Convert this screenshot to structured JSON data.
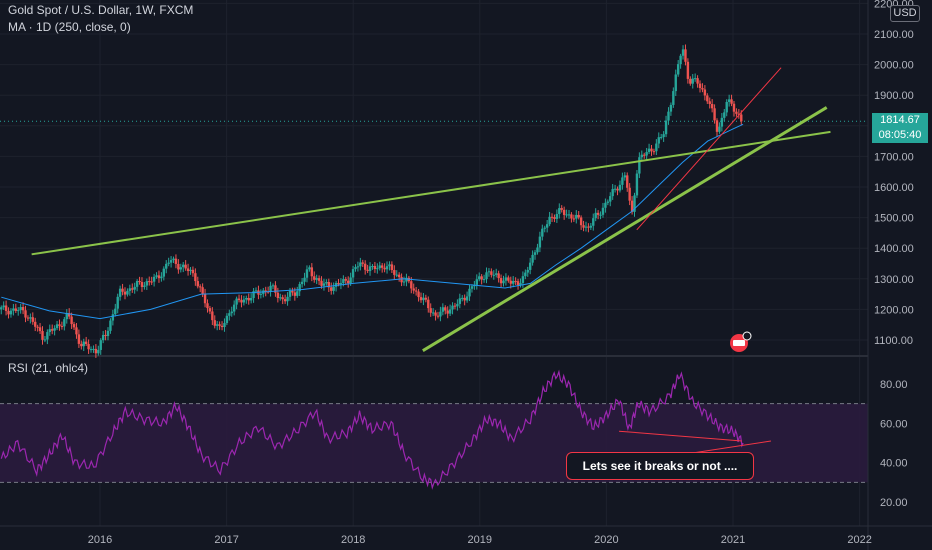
{
  "header": {
    "symbol_title": "Gold Spot / U.S. Dollar, 1W, FXCM",
    "ma_label": "MA · 1D (250, close, 0)",
    "rsi_label": "RSI (21, ohlc4)",
    "currency_badge": "USD"
  },
  "price_tag": {
    "price": "1814.67",
    "countdown": "08:05:40"
  },
  "annotation": {
    "text": "Lets see it breaks or not ...."
  },
  "colors": {
    "background": "#131722",
    "up_candle": "#26a69a",
    "down_candle": "#ef5350",
    "ma_line": "#2196f3",
    "trendline": "#8bc34a",
    "rsi_line": "#9c27b0",
    "rsi_band": "#2a1b3d",
    "red_line": "#f23645"
  },
  "chart_data": [
    {
      "type": "candlestick",
      "title": "Gold Spot / U.S. Dollar, 1W, FXCM",
      "ylim": [
        1040,
        2200
      ],
      "y_ticks": [
        "1100.00",
        "1200.00",
        "1300.00",
        "1400.00",
        "1500.00",
        "1600.00",
        "1700.00",
        "1800.00",
        "1900.00",
        "2000.00",
        "2100.00",
        "2200.00"
      ],
      "x_ticks": [
        "2016",
        "2017",
        "2018",
        "2019",
        "2020",
        "2021",
        "2022"
      ],
      "x_tick_values": [
        2016,
        2017,
        2018,
        2019,
        2020,
        2021,
        2022
      ],
      "xlim": [
        2015.22,
        2022.2
      ],
      "series_close": [
        {
          "x": 2015.22,
          "y": 1200
        },
        {
          "x": 2015.4,
          "y": 1195
        },
        {
          "x": 2015.55,
          "y": 1110
        },
        {
          "x": 2015.65,
          "y": 1140
        },
        {
          "x": 2015.75,
          "y": 1180
        },
        {
          "x": 2015.85,
          "y": 1085
        },
        {
          "x": 2015.97,
          "y": 1065
        },
        {
          "x": 2016.05,
          "y": 1120
        },
        {
          "x": 2016.15,
          "y": 1250
        },
        {
          "x": 2016.3,
          "y": 1280
        },
        {
          "x": 2016.45,
          "y": 1300
        },
        {
          "x": 2016.55,
          "y": 1360
        },
        {
          "x": 2016.65,
          "y": 1340
        },
        {
          "x": 2016.75,
          "y": 1310
        },
        {
          "x": 2016.85,
          "y": 1200
        },
        {
          "x": 2016.95,
          "y": 1130
        },
        {
          "x": 2017.05,
          "y": 1215
        },
        {
          "x": 2017.2,
          "y": 1245
        },
        {
          "x": 2017.35,
          "y": 1270
        },
        {
          "x": 2017.45,
          "y": 1230
        },
        {
          "x": 2017.55,
          "y": 1260
        },
        {
          "x": 2017.65,
          "y": 1330
        },
        {
          "x": 2017.75,
          "y": 1280
        },
        {
          "x": 2017.85,
          "y": 1275
        },
        {
          "x": 2017.95,
          "y": 1295
        },
        {
          "x": 2018.05,
          "y": 1350
        },
        {
          "x": 2018.15,
          "y": 1330
        },
        {
          "x": 2018.25,
          "y": 1345
        },
        {
          "x": 2018.35,
          "y": 1310
        },
        {
          "x": 2018.45,
          "y": 1280
        },
        {
          "x": 2018.55,
          "y": 1230
        },
        {
          "x": 2018.65,
          "y": 1180
        },
        {
          "x": 2018.75,
          "y": 1200
        },
        {
          "x": 2018.85,
          "y": 1225
        },
        {
          "x": 2018.95,
          "y": 1280
        },
        {
          "x": 2019.05,
          "y": 1320
        },
        {
          "x": 2019.15,
          "y": 1305
        },
        {
          "x": 2019.25,
          "y": 1285
        },
        {
          "x": 2019.35,
          "y": 1300
        },
        {
          "x": 2019.45,
          "y": 1410
        },
        {
          "x": 2019.55,
          "y": 1500
        },
        {
          "x": 2019.65,
          "y": 1520
        },
        {
          "x": 2019.75,
          "y": 1500
        },
        {
          "x": 2019.85,
          "y": 1465
        },
        {
          "x": 2019.95,
          "y": 1520
        },
        {
          "x": 2020.05,
          "y": 1580
        },
        {
          "x": 2020.15,
          "y": 1640
        },
        {
          "x": 2020.2,
          "y": 1500
        },
        {
          "x": 2020.25,
          "y": 1690
        },
        {
          "x": 2020.35,
          "y": 1720
        },
        {
          "x": 2020.45,
          "y": 1770
        },
        {
          "x": 2020.55,
          "y": 1960
        },
        {
          "x": 2020.6,
          "y": 2060
        },
        {
          "x": 2020.65,
          "y": 1950
        },
        {
          "x": 2020.72,
          "y": 1940
        },
        {
          "x": 2020.8,
          "y": 1890
        },
        {
          "x": 2020.88,
          "y": 1780
        },
        {
          "x": 2020.95,
          "y": 1880
        },
        {
          "x": 2021.02,
          "y": 1850
        },
        {
          "x": 2021.08,
          "y": 1814.67
        }
      ],
      "ma_250": [
        {
          "x": 2015.22,
          "y": 1240
        },
        {
          "x": 2015.6,
          "y": 1195
        },
        {
          "x": 2016.0,
          "y": 1170
        },
        {
          "x": 2016.4,
          "y": 1200
        },
        {
          "x": 2016.8,
          "y": 1250
        },
        {
          "x": 2017.2,
          "y": 1255
        },
        {
          "x": 2017.6,
          "y": 1265
        },
        {
          "x": 2018.0,
          "y": 1285
        },
        {
          "x": 2018.4,
          "y": 1300
        },
        {
          "x": 2018.8,
          "y": 1285
        },
        {
          "x": 2019.2,
          "y": 1270
        },
        {
          "x": 2019.4,
          "y": 1285
        },
        {
          "x": 2019.6,
          "y": 1345
        },
        {
          "x": 2019.8,
          "y": 1400
        },
        {
          "x": 2020.0,
          "y": 1460
        },
        {
          "x": 2020.2,
          "y": 1520
        },
        {
          "x": 2020.4,
          "y": 1600
        },
        {
          "x": 2020.6,
          "y": 1680
        },
        {
          "x": 2020.8,
          "y": 1750
        },
        {
          "x": 2021.0,
          "y": 1790
        },
        {
          "x": 2021.08,
          "y": 1805
        }
      ],
      "trendlines": [
        {
          "x1": 2015.46,
          "y1": 1380,
          "x2": 2021.77,
          "y2": 1780
        },
        {
          "x1": 2018.55,
          "y1": 1065,
          "x2": 2021.74,
          "y2": 1860
        },
        {
          "x1": 2020.24,
          "y1": 1460,
          "x2": 2021.38,
          "y2": 1990
        }
      ],
      "current_price": 1814.67
    },
    {
      "type": "line",
      "title": "RSI (21, ohlc4)",
      "ylim": [
        10,
        92
      ],
      "y_ticks": [
        "20.00",
        "40.00",
        "60.00",
        "80.00"
      ],
      "band": [
        30,
        70
      ],
      "series": [
        {
          "x": 2015.22,
          "y": 42
        },
        {
          "x": 2015.35,
          "y": 50
        },
        {
          "x": 2015.5,
          "y": 36
        },
        {
          "x": 2015.6,
          "y": 44
        },
        {
          "x": 2015.7,
          "y": 54
        },
        {
          "x": 2015.8,
          "y": 40
        },
        {
          "x": 2015.95,
          "y": 38
        },
        {
          "x": 2016.1,
          "y": 55
        },
        {
          "x": 2016.2,
          "y": 66
        },
        {
          "x": 2016.35,
          "y": 62
        },
        {
          "x": 2016.5,
          "y": 60
        },
        {
          "x": 2016.6,
          "y": 69
        },
        {
          "x": 2016.7,
          "y": 58
        },
        {
          "x": 2016.8,
          "y": 44
        },
        {
          "x": 2016.95,
          "y": 36
        },
        {
          "x": 2017.1,
          "y": 50
        },
        {
          "x": 2017.25,
          "y": 58
        },
        {
          "x": 2017.4,
          "y": 48
        },
        {
          "x": 2017.55,
          "y": 56
        },
        {
          "x": 2017.7,
          "y": 66
        },
        {
          "x": 2017.8,
          "y": 52
        },
        {
          "x": 2017.95,
          "y": 55
        },
        {
          "x": 2018.05,
          "y": 64
        },
        {
          "x": 2018.15,
          "y": 57
        },
        {
          "x": 2018.3,
          "y": 60
        },
        {
          "x": 2018.4,
          "y": 45
        },
        {
          "x": 2018.55,
          "y": 32
        },
        {
          "x": 2018.65,
          "y": 29
        },
        {
          "x": 2018.8,
          "y": 40
        },
        {
          "x": 2018.95,
          "y": 52
        },
        {
          "x": 2019.05,
          "y": 62
        },
        {
          "x": 2019.15,
          "y": 60
        },
        {
          "x": 2019.25,
          "y": 52
        },
        {
          "x": 2019.4,
          "y": 62
        },
        {
          "x": 2019.5,
          "y": 76
        },
        {
          "x": 2019.6,
          "y": 85
        },
        {
          "x": 2019.7,
          "y": 80
        },
        {
          "x": 2019.8,
          "y": 66
        },
        {
          "x": 2019.9,
          "y": 58
        },
        {
          "x": 2020.0,
          "y": 64
        },
        {
          "x": 2020.1,
          "y": 72
        },
        {
          "x": 2020.18,
          "y": 57
        },
        {
          "x": 2020.25,
          "y": 70
        },
        {
          "x": 2020.35,
          "y": 66
        },
        {
          "x": 2020.5,
          "y": 74
        },
        {
          "x": 2020.58,
          "y": 85
        },
        {
          "x": 2020.68,
          "y": 71
        },
        {
          "x": 2020.8,
          "y": 64
        },
        {
          "x": 2020.9,
          "y": 58
        },
        {
          "x": 2021.0,
          "y": 56
        },
        {
          "x": 2021.08,
          "y": 50
        }
      ],
      "lines": [
        {
          "x1": 2020.1,
          "y1": 56,
          "x2": 2021.07,
          "y2": 51
        },
        {
          "x1": 2020.18,
          "y1": 40,
          "x2": 2021.3,
          "y2": 51
        }
      ]
    }
  ]
}
